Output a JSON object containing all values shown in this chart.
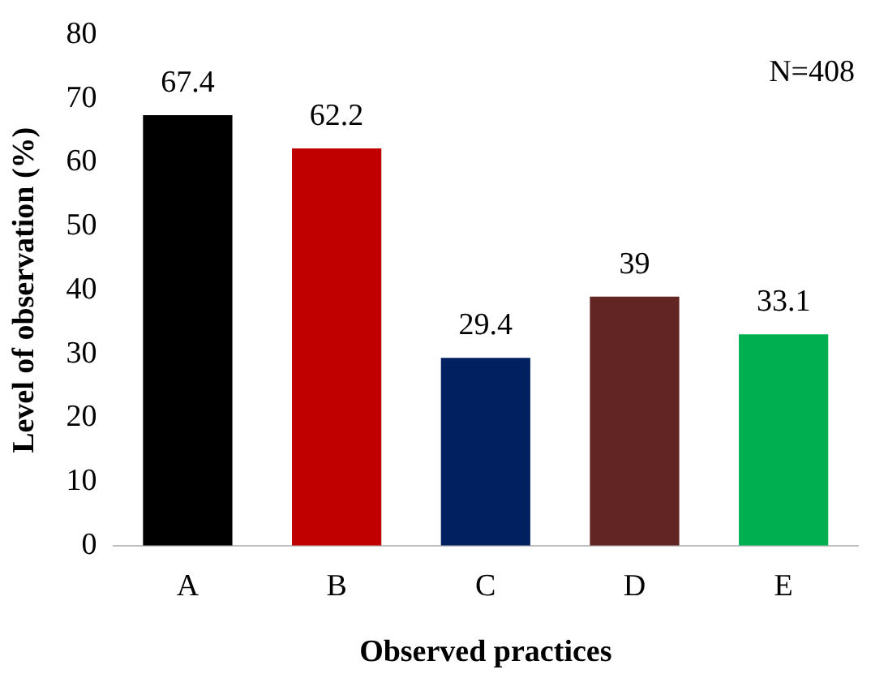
{
  "chart_data": {
    "type": "bar",
    "categories": [
      "A",
      "B",
      "C",
      "D",
      "E"
    ],
    "values": [
      67.4,
      62.2,
      29.4,
      39,
      33.1
    ],
    "colors": [
      "#000000",
      "#c00000",
      "#002060",
      "#632523",
      "#00b050"
    ],
    "xlabel": "Observed practices",
    "ylabel": "Level of observation (%)",
    "ylim": [
      0,
      80
    ],
    "yticks": [
      0,
      10,
      20,
      30,
      40,
      50,
      60,
      70,
      80
    ],
    "grid": false,
    "data_labels": true,
    "legend": false,
    "annotations": [
      "N=408"
    ]
  }
}
